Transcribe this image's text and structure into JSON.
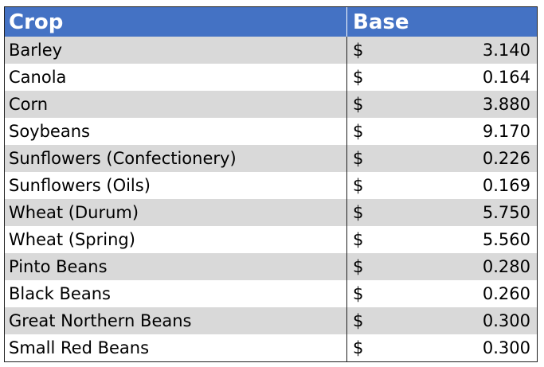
{
  "table": {
    "headers": {
      "crop": "Crop",
      "base": "Base"
    },
    "rows": [
      {
        "crop": "Barley",
        "currency": "$",
        "base": "3.140"
      },
      {
        "crop": "Canola",
        "currency": "$",
        "base": "0.164"
      },
      {
        "crop": "Corn",
        "currency": "$",
        "base": "3.880"
      },
      {
        "crop": "Soybeans",
        "currency": "$",
        "base": "9.170"
      },
      {
        "crop": "Sunflowers (Confectionery)",
        "currency": "$",
        "base": "0.226"
      },
      {
        "crop": "Sunflowers (Oils)",
        "currency": "$",
        "base": "0.169"
      },
      {
        "crop": "Wheat (Durum)",
        "currency": "$",
        "base": "5.750"
      },
      {
        "crop": "Wheat (Spring)",
        "currency": "$",
        "base": "5.560"
      },
      {
        "crop": "Pinto Beans",
        "currency": "$",
        "base": "0.280"
      },
      {
        "crop": "Black Beans",
        "currency": "$",
        "base": "0.260"
      },
      {
        "crop": "Great Northern Beans",
        "currency": "$",
        "base": "0.300"
      },
      {
        "crop": "Small Red Beans",
        "currency": "$",
        "base": "0.300"
      }
    ]
  },
  "colors": {
    "header_background": "#4472c4",
    "header_text": "#ffffff",
    "band_shaded": "#d9d9d9",
    "band_plain": "#ffffff"
  }
}
